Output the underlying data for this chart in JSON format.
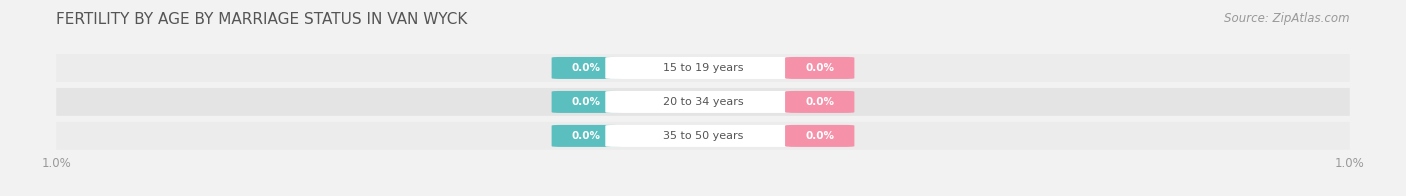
{
  "title": "FERTILITY BY AGE BY MARRIAGE STATUS IN VAN WYCK",
  "source": "Source: ZipAtlas.com",
  "age_groups": [
    "15 to 19 years",
    "20 to 34 years",
    "35 to 50 years"
  ],
  "married_values": [
    0.0,
    0.0,
    0.0
  ],
  "unmarried_values": [
    0.0,
    0.0,
    0.0
  ],
  "married_color": "#5bbfbf",
  "unmarried_color": "#f592aa",
  "row_bg_colors": [
    "#ececec",
    "#e4e4e4",
    "#ececec"
  ],
  "center_label_color": "#555555",
  "axis_label_color": "#999999",
  "title_color": "#555555",
  "source_color": "#999999",
  "title_fontsize": 11,
  "source_fontsize": 8.5,
  "legend_fontsize": 9,
  "background_color": "#f2f2f2",
  "xlim_left": -1.0,
  "xlim_right": 1.0
}
